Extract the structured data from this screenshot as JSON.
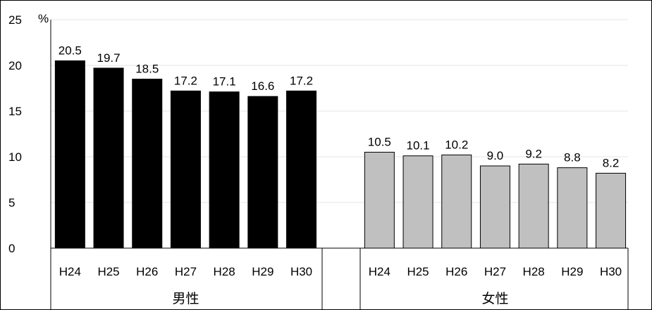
{
  "chart_data": {
    "type": "bar",
    "y_unit": "%",
    "ylim": [
      0,
      25
    ],
    "yticks": [
      0,
      5,
      10,
      15,
      20,
      25
    ],
    "grid": true,
    "groups": [
      {
        "name": "男性",
        "color": "#000000",
        "categories": [
          "H24",
          "H25",
          "H26",
          "H27",
          "H28",
          "H29",
          "H30"
        ],
        "values": [
          20.5,
          19.7,
          18.5,
          17.2,
          17.1,
          16.6,
          17.2
        ],
        "labels": [
          "20.5",
          "19.7",
          "18.5",
          "17.2",
          "17.1",
          "16.6",
          "17.2"
        ]
      },
      {
        "name": "女性",
        "color": "#c0c0c0",
        "categories": [
          "H24",
          "H25",
          "H26",
          "H27",
          "H28",
          "H29",
          "H30"
        ],
        "values": [
          10.5,
          10.1,
          10.2,
          9.0,
          9.2,
          8.8,
          8.2
        ],
        "labels": [
          "10.5",
          "10.1",
          "10.2",
          "9.0",
          "9.2",
          "8.8",
          "8.2"
        ]
      }
    ]
  }
}
